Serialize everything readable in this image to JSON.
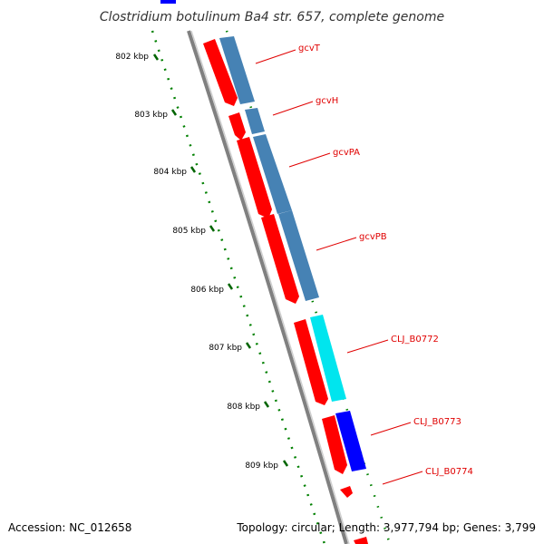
{
  "title": "Clostridium botulinum Ba4 str. 657, complete genome",
  "footer": {
    "accession": "Accession: NC_012658",
    "summary": "Topology: circular; Length: 3,977,794 bp; Genes: 3,799"
  },
  "scale": {
    "ticks": [
      "802 kbp",
      "803 kbp",
      "804 kbp",
      "805 kbp",
      "806 kbp",
      "807 kbp",
      "808 kbp",
      "809 kbp"
    ]
  },
  "genes": [
    {
      "name": "gcvT"
    },
    {
      "name": "gcvH"
    },
    {
      "name": "gcvPA"
    },
    {
      "name": "gcvPB"
    },
    {
      "name": "CLJ_B0772"
    },
    {
      "name": "CLJ_B0773"
    },
    {
      "name": "CLJ_B0774"
    }
  ],
  "colors": {
    "forward_cds": "#ff0000",
    "steelblue_track": "#4682b4",
    "cyan_track": "#00e5ee",
    "blue_track": "#0000ff",
    "backbone": "#808080",
    "tick": "#006400",
    "label": "#e00000"
  }
}
